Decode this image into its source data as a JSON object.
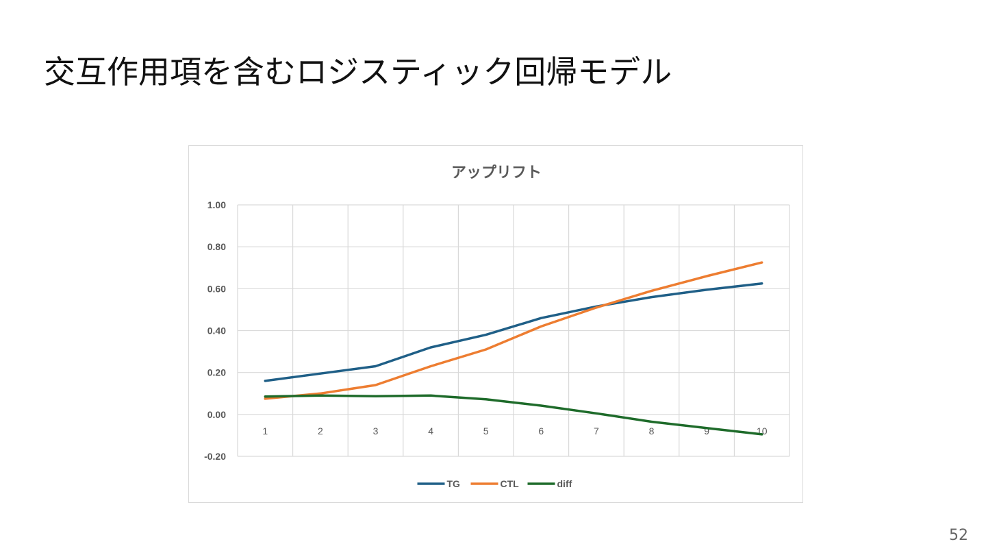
{
  "slide": {
    "title": "交互作用項を含むロジスティック回帰モデル",
    "page_number": "52"
  },
  "chart_data": {
    "type": "line",
    "title": "アップリフト",
    "xlabel": "",
    "ylabel": "",
    "categories": [
      "1",
      "2",
      "3",
      "4",
      "5",
      "6",
      "7",
      "8",
      "9",
      "10"
    ],
    "ylim": [
      -0.2,
      1.0
    ],
    "yticks": [
      1.0,
      0.8,
      0.6,
      0.4,
      0.2,
      0.0,
      -0.2
    ],
    "ytick_labels": [
      "1.00",
      "0.80",
      "0.60",
      "0.40",
      "0.20",
      "0.00",
      "-0.20"
    ],
    "grid": true,
    "legend_position": "bottom",
    "series": [
      {
        "name": "TG",
        "color": "#1f5f87",
        "values": [
          0.16,
          0.195,
          0.23,
          0.32,
          0.38,
          0.46,
          0.515,
          0.56,
          0.595,
          0.625
        ]
      },
      {
        "name": "CTL",
        "color": "#ed7d31",
        "values": [
          0.075,
          0.1,
          0.14,
          0.23,
          0.31,
          0.42,
          0.51,
          0.59,
          0.66,
          0.725
        ]
      },
      {
        "name": "diff",
        "color": "#1e6b2a",
        "values": [
          0.085,
          0.09,
          0.087,
          0.09,
          0.072,
          0.042,
          0.005,
          -0.035,
          -0.065,
          -0.095
        ]
      }
    ]
  }
}
